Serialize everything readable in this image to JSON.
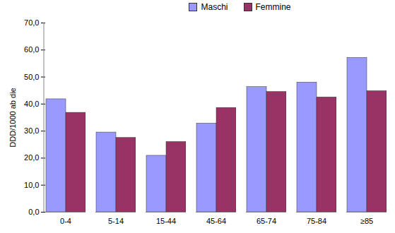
{
  "chart_data": {
    "type": "bar",
    "categories": [
      "0-4",
      "5-14",
      "15-44",
      "45-64",
      "65-74",
      "75-84",
      "≥85"
    ],
    "series": [
      {
        "name": "Maschi",
        "color": "#9999ff",
        "values": [
          41.8,
          29.5,
          20.9,
          32.8,
          46.3,
          48.0,
          57.1
        ]
      },
      {
        "name": "Femmine",
        "color": "#993366",
        "values": [
          36.8,
          27.5,
          26.0,
          38.6,
          44.5,
          42.5,
          44.8
        ]
      }
    ],
    "y_label": "DDD/1000 ab die",
    "ylim": [
      0,
      70
    ],
    "yticks": [
      {
        "value": 0,
        "label": "0,0"
      },
      {
        "value": 10,
        "label": "10,0"
      },
      {
        "value": 20,
        "label": "20,0"
      },
      {
        "value": 30,
        "label": "30,0"
      },
      {
        "value": 40,
        "label": "40,0"
      },
      {
        "value": 50,
        "label": "50,0"
      },
      {
        "value": 60,
        "label": "60,0"
      },
      {
        "value": 70,
        "label": "70,0"
      }
    ],
    "grid": false,
    "legend": "top"
  }
}
